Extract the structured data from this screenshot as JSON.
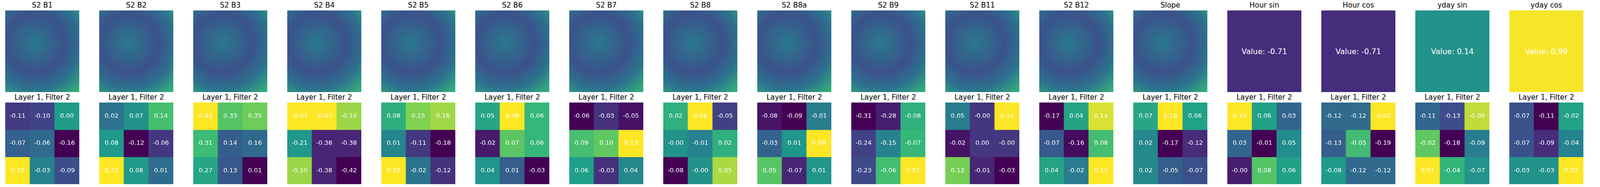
{
  "chart_data": {
    "type": "heatmap_grid",
    "image_color_range": [
      -1,
      1
    ],
    "panels": [
      {
        "title": "S2 B1",
        "filter_title": "Layer 1, Filter 2",
        "weights": [
          [
            -0.11,
            -0.1,
            0.0
          ],
          [
            -0.07,
            -0.06,
            -0.16
          ],
          [
            0.1,
            -0.03,
            -0.09
          ]
        ],
        "weight_labels": [
          [
            "-0.11",
            "-0.10",
            "0.00"
          ],
          [
            "-0.07",
            "-0.06",
            "-0.16"
          ],
          [
            "0.10",
            "-0.03",
            "-0.09"
          ]
        ]
      },
      {
        "title": "S2 B2",
        "filter_title": "Layer 1, Filter 2",
        "weights": [
          [
            0.02,
            0.07,
            0.14
          ],
          [
            0.08,
            -0.12,
            -0.06
          ],
          [
            0.21,
            0.08,
            0.01
          ]
        ],
        "weight_labels": [
          [
            "0.02",
            "0.07",
            "0.14"
          ],
          [
            "0.08",
            "-0.12",
            "-0.06"
          ],
          [
            "0.21",
            "0.08",
            "0.01"
          ]
        ]
      },
      {
        "title": "S2 B3",
        "filter_title": "Layer 1, Filter 2",
        "weights": [
          [
            0.4,
            0.33,
            0.35
          ],
          [
            0.31,
            0.14,
            0.16
          ],
          [
            0.27,
            0.13,
            0.01
          ]
        ],
        "weight_labels": [
          [
            "0.40",
            "0.33",
            "0.35"
          ],
          [
            "0.31",
            "0.14",
            "0.16"
          ],
          [
            "0.27",
            "0.13",
            "0.01"
          ]
        ]
      },
      {
        "title": "S2 B4",
        "filter_title": "Layer 1, Filter 2",
        "weights": [
          [
            -0.07,
            -0.07,
            -0.1
          ],
          [
            -0.21,
            -0.38,
            -0.38
          ],
          [
            -0.1,
            -0.38,
            -0.42
          ]
        ],
        "weight_labels": [
          [
            "-0.07",
            "-0.07",
            "-0.10"
          ],
          [
            "-0.21",
            "-0.38",
            "-0.38"
          ],
          [
            "-0.10",
            "-0.38",
            "-0.42"
          ]
        ]
      },
      {
        "title": "S2 B5",
        "filter_title": "Layer 1, Filter 2",
        "weights": [
          [
            0.08,
            0.15,
            0.16
          ],
          [
            0.01,
            -0.11,
            -0.18
          ],
          [
            0.19,
            -0.02,
            -0.12
          ]
        ],
        "weight_labels": [
          [
            "0.08",
            "0.15",
            "0.16"
          ],
          [
            "0.01",
            "-0.11",
            "-0.18"
          ],
          [
            "0.19",
            "-0.02",
            "-0.12"
          ]
        ]
      },
      {
        "title": "S2 B6",
        "filter_title": "Layer 1, Filter 2",
        "weights": [
          [
            0.05,
            0.09,
            0.06
          ],
          [
            -0.02,
            0.07,
            0.06
          ],
          [
            0.04,
            0.01,
            -0.03
          ]
        ],
        "weight_labels": [
          [
            "0.05",
            "0.09",
            "0.06"
          ],
          [
            "-0.02",
            "0.07",
            "0.06"
          ],
          [
            "0.04",
            "0.01",
            "-0.03"
          ]
        ]
      },
      {
        "title": "S2 B7",
        "filter_title": "Layer 1, Filter 2",
        "weights": [
          [
            -0.06,
            -0.03,
            -0.05
          ],
          [
            0.09,
            0.1,
            0.13
          ],
          [
            0.06,
            -0.03,
            0.04
          ]
        ],
        "weight_labels": [
          [
            "-0.06",
            "-0.03",
            "-0.05"
          ],
          [
            "0.09",
            "0.10",
            "0.13"
          ],
          [
            "0.06",
            "-0.03",
            "0.04"
          ]
        ]
      },
      {
        "title": "S2 B8",
        "filter_title": "Layer 1, Filter 2",
        "weights": [
          [
            0.02,
            0.06,
            -0.05
          ],
          [
            0.0,
            -0.01,
            0.02
          ],
          [
            -0.08,
            0.0,
            0.05
          ]
        ],
        "weight_labels": [
          [
            "0.02",
            "0.06",
            "-0.05"
          ],
          [
            "-0.00",
            "-0.01",
            "0.02"
          ],
          [
            "-0.08",
            "-0.00",
            "0.05"
          ]
        ]
      },
      {
        "title": "S2 B8a",
        "filter_title": "Layer 1, Filter 2",
        "weights": [
          [
            -0.08,
            -0.09,
            -0.01
          ],
          [
            -0.03,
            0.01,
            0.08
          ],
          [
            0.05,
            -0.07,
            0.01
          ]
        ],
        "weight_labels": [
          [
            "-0.08",
            "-0.09",
            "-0.01"
          ],
          [
            "-0.03",
            "0.01",
            "0.08"
          ],
          [
            "0.05",
            "-0.07",
            "0.01"
          ]
        ]
      },
      {
        "title": "S2 B9",
        "filter_title": "Layer 1, Filter 2",
        "weights": [
          [
            -0.31,
            -0.28,
            -0.08
          ],
          [
            -0.24,
            -0.15,
            -0.07
          ],
          [
            -0.23,
            -0.06,
            0.01
          ]
        ],
        "weight_labels": [
          [
            "-0.31",
            "-0.28",
            "-0.08"
          ],
          [
            "-0.24",
            "-0.15",
            "-0.07"
          ],
          [
            "-0.23",
            "-0.06",
            "0.01"
          ]
        ]
      },
      {
        "title": "S2 B11",
        "filter_title": "Layer 1, Filter 2",
        "weights": [
          [
            0.05,
            0.0,
            0.14
          ],
          [
            -0.02,
            0.0,
            0.0
          ],
          [
            0.12,
            -0.01,
            -0.03
          ]
        ],
        "weight_labels": [
          [
            "0.05",
            "-0.00",
            "0.14"
          ],
          [
            "-0.02",
            "0.00",
            "-0.00"
          ],
          [
            "0.12",
            "-0.01",
            "-0.03"
          ]
        ]
      },
      {
        "title": "S2 B12",
        "filter_title": "Layer 1, Filter 2",
        "weights": [
          [
            -0.17,
            0.04,
            0.14
          ],
          [
            -0.07,
            -0.16,
            0.08
          ],
          [
            0.04,
            -0.02,
            0.15
          ]
        ],
        "weight_labels": [
          [
            "-0.17",
            "0.04",
            "0.14"
          ],
          [
            "-0.07",
            "-0.16",
            "0.08"
          ],
          [
            "0.04",
            "-0.02",
            "0.15"
          ]
        ]
      },
      {
        "title": "Slope",
        "filter_title": "Layer 1, Filter 2",
        "weights": [
          [
            0.07,
            0.19,
            0.06
          ],
          [
            0.02,
            -0.17,
            -0.12
          ],
          [
            0.02,
            -0.05,
            -0.07
          ]
        ],
        "weight_labels": [
          [
            "0.07",
            "0.19",
            "0.06"
          ],
          [
            "0.02",
            "-0.17",
            "-0.12"
          ],
          [
            "0.02",
            "-0.05",
            "-0.07"
          ]
        ]
      },
      {
        "title": "Hour sin",
        "image_value": -0.71,
        "image_text": "Value: -0.71",
        "filter_title": "Layer 1, Filter 2",
        "weights": [
          [
            0.1,
            0.06,
            0.03
          ],
          [
            0.03,
            -0.01,
            0.05
          ],
          [
            0.0,
            0.08,
            0.06
          ]
        ],
        "weight_labels": [
          [
            "0.10",
            "0.06",
            "0.03"
          ],
          [
            "0.03",
            "-0.01",
            "0.05"
          ],
          [
            "-0.00",
            "0.08",
            "0.06"
          ]
        ]
      },
      {
        "title": "Hour cos",
        "image_value": -0.71,
        "image_text": "Value: -0.71",
        "filter_title": "Layer 1, Filter 2",
        "weights": [
          [
            -0.12,
            -0.12,
            -0.01
          ],
          [
            -0.13,
            -0.05,
            -0.19
          ],
          [
            -0.08,
            -0.12,
            -0.12
          ]
        ],
        "weight_labels": [
          [
            "-0.12",
            "-0.12",
            "-0.01"
          ],
          [
            "-0.13",
            "-0.05",
            "-0.19"
          ],
          [
            "-0.08",
            "-0.12",
            "-0.12"
          ]
        ]
      },
      {
        "title": "yday sin",
        "image_value": 0.14,
        "image_text": "Value: 0.14",
        "filter_title": "Layer 1, Filter 2",
        "weights": [
          [
            -0.11,
            -0.13,
            0.0
          ],
          [
            -0.02,
            -0.18,
            -0.09
          ],
          [
            0.01,
            -0.04,
            -0.07
          ]
        ],
        "weight_labels": [
          [
            "-0.11",
            "-0.13",
            "-0.00"
          ],
          [
            "-0.02",
            "-0.18",
            "-0.09"
          ],
          [
            "0.01",
            "-0.04",
            "-0.07"
          ]
        ]
      },
      {
        "title": "yday cos",
        "image_value": 0.99,
        "image_text": "Value: 0.99",
        "filter_title": "Layer 1, Filter 2",
        "weights": [
          [
            -0.07,
            -0.11,
            -0.02
          ],
          [
            -0.07,
            -0.09,
            -0.04
          ],
          [
            -0.03,
            -0.03,
            0.03
          ]
        ],
        "weight_labels": [
          [
            "-0.07",
            "-0.11",
            "-0.02"
          ],
          [
            "-0.07",
            "-0.09",
            "-0.04"
          ],
          [
            "-0.03",
            "-0.03",
            "0.03"
          ]
        ]
      }
    ]
  }
}
